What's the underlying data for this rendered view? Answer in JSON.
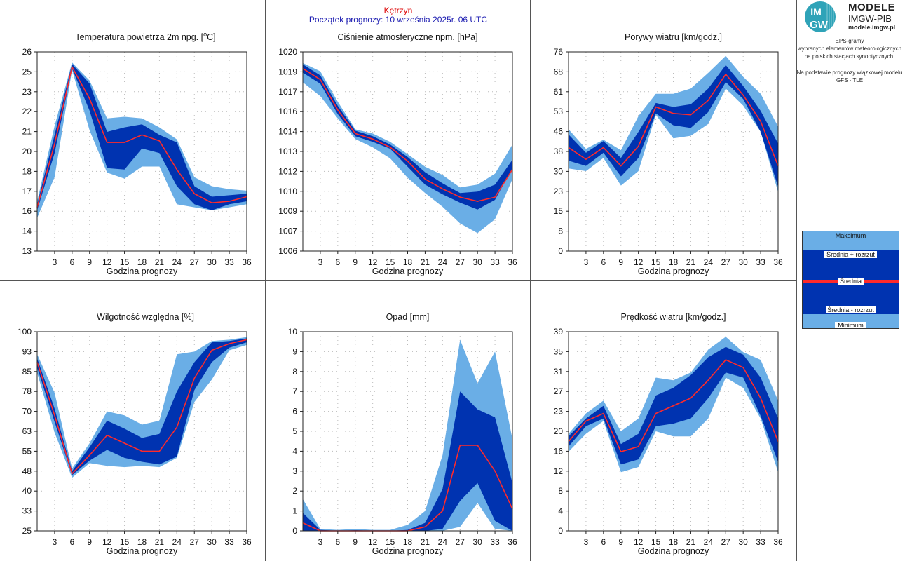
{
  "header": {
    "station": "Kętrzyn",
    "forecast_start": "Początek prognozy: 10 września 2025r. 06 UTC"
  },
  "brand": {
    "logo_text_top": "IM",
    "logo_text_bottom": "GW",
    "name": "MODELE",
    "org": "IMGW-PIB",
    "url": "modele.imgw.pl"
  },
  "side_text": {
    "line1": "EPS-gramy",
    "line2": "wybranych elementów meteorologicznych",
    "line3": "na polskich stacjach  synoptycznych.",
    "line4": "Na podstawie prognozy wiązkowej modelu",
    "line5": "GFS - TLE"
  },
  "legend": {
    "max": "Maksimum",
    "mean_plus": "Średnia + rozrzut",
    "mean": "Średnia",
    "mean_minus": "Średnia - rozrzut",
    "min": "Minimum"
  },
  "colors": {
    "outer_band": "#6aaee6",
    "inner_band": "#0033b0",
    "mean_line": "#ff2a2a",
    "grid": "#bbbbbb",
    "header_station": "#dd0000",
    "header_date": "#1a1ab0"
  },
  "chart_data": [
    {
      "type": "area",
      "title": "Temperatura powietrza 2m npg. [°C]",
      "title_main": "Temperatura powietrza 2m npg. [",
      "title_unit": "C]",
      "xlabel": "Godzina prognozy",
      "x": [
        0,
        3,
        6,
        9,
        12,
        15,
        18,
        21,
        24,
        27,
        30,
        33,
        36
      ],
      "xticks": [
        "3",
        "6",
        "9",
        "12",
        "15",
        "18",
        "21",
        "24",
        "27",
        "30",
        "33",
        "36"
      ],
      "yticks": [
        "13",
        "14",
        "16",
        "17",
        "18",
        "20",
        "21",
        "22",
        "23",
        "25",
        "26"
      ],
      "ylim": [
        12.9,
        26.1
      ],
      "min": [
        15.1,
        17.8,
        24.9,
        20.9,
        18.1,
        17.7,
        18.5,
        18.5,
        16.0,
        15.8,
        15.6,
        15.8,
        16.0
      ],
      "mean_minus": [
        15.6,
        19.4,
        25.0,
        22.2,
        18.4,
        18.3,
        19.7,
        19.4,
        17.2,
        16.0,
        15.6,
        16.0,
        16.2
      ],
      "mean": [
        15.8,
        20.0,
        25.1,
        23.0,
        20.1,
        20.1,
        20.6,
        20.2,
        18.3,
        16.7,
        16.1,
        16.2,
        16.5
      ],
      "mean_plus": [
        16.0,
        20.6,
        25.3,
        24.0,
        20.8,
        21.1,
        21.3,
        20.6,
        20.1,
        17.2,
        16.5,
        16.6,
        16.7
      ],
      "max": [
        16.2,
        21.2,
        25.4,
        24.2,
        21.7,
        21.8,
        21.7,
        21.1,
        20.3,
        17.8,
        17.2,
        17.0,
        16.9
      ]
    },
    {
      "type": "area",
      "title": "Ciśnienie atmosferyczne npm. [hPa]",
      "xlabel": "Godzina prognozy",
      "x": [
        0,
        3,
        6,
        9,
        12,
        15,
        18,
        21,
        24,
        27,
        30,
        33,
        36
      ],
      "xticks": [
        "3",
        "6",
        "9",
        "12",
        "15",
        "18",
        "21",
        "24",
        "27",
        "30",
        "33",
        "36"
      ],
      "yticks": [
        "1006",
        "1007",
        "1009",
        "1010",
        "1012",
        "1013",
        "1014",
        "1016",
        "1017",
        "1019",
        "1020"
      ],
      "ylim": [
        1005.8,
        1020.2
      ],
      "min": [
        1018.0,
        1017.0,
        1015.4,
        1013.9,
        1013.3,
        1012.5,
        1011.1,
        1010.0,
        1009.0,
        1007.8,
        1007.1,
        1008.1,
        1011.0
      ],
      "mean_minus": [
        1018.7,
        1017.9,
        1015.7,
        1014.1,
        1013.7,
        1013.2,
        1011.9,
        1010.6,
        1009.9,
        1009.3,
        1008.8,
        1009.5,
        1011.8
      ],
      "mean": [
        1019.0,
        1018.2,
        1016.0,
        1014.3,
        1013.9,
        1013.3,
        1012.3,
        1011.0,
        1010.3,
        1009.7,
        1009.4,
        1009.7,
        1011.7
      ],
      "mean_plus": [
        1019.3,
        1018.5,
        1016.3,
        1014.5,
        1014.1,
        1013.5,
        1012.6,
        1011.5,
        1010.7,
        1010.0,
        1010.1,
        1010.6,
        1012.4
      ],
      "max": [
        1019.4,
        1018.8,
        1016.6,
        1014.6,
        1014.3,
        1013.7,
        1012.8,
        1011.9,
        1011.3,
        1010.4,
        1010.6,
        1011.4,
        1013.5
      ]
    },
    {
      "type": "area",
      "title": "Porywy wiatru [km/godz.]",
      "xlabel": "Godzina prognozy",
      "x": [
        0,
        3,
        6,
        9,
        12,
        15,
        18,
        21,
        24,
        27,
        30,
        33,
        36
      ],
      "xticks": [
        "3",
        "6",
        "9",
        "12",
        "15",
        "18",
        "21",
        "24",
        "27",
        "30",
        "33",
        "36"
      ],
      "yticks": [
        "0",
        "8",
        "15",
        "23",
        "30",
        "38",
        "46",
        "53",
        "61",
        "68",
        "76"
      ],
      "ylim": [
        0,
        76
      ],
      "min": [
        31.5,
        30.5,
        35.5,
        25.0,
        30.5,
        52.0,
        43.0,
        44.0,
        48.5,
        62.0,
        55.5,
        45.5,
        22.5
      ],
      "mean_minus": [
        34.5,
        32.5,
        37.5,
        28.5,
        35.5,
        52.5,
        48.0,
        47.0,
        53.0,
        64.5,
        58.0,
        45.5,
        24.5
      ],
      "mean": [
        39.5,
        35.0,
        39.5,
        32.5,
        40.0,
        55.0,
        52.5,
        52.0,
        57.5,
        67.5,
        59.5,
        49.5,
        32.5
      ],
      "mean_plus": [
        44.5,
        37.5,
        42.0,
        35.5,
        45.5,
        56.5,
        55.0,
        56.0,
        62.0,
        71.0,
        63.0,
        53.5,
        41.0
      ],
      "max": [
        46.5,
        39.0,
        42.5,
        38.5,
        51.5,
        60.0,
        60.0,
        62.0,
        68.0,
        74.5,
        66.5,
        60.0,
        47.5
      ]
    },
    {
      "type": "area",
      "title": "Wilgotność względna [%]",
      "xlabel": "Godzina prognozy",
      "x": [
        0,
        3,
        6,
        9,
        12,
        15,
        18,
        21,
        24,
        27,
        30,
        33,
        36
      ],
      "xticks": [
        "3",
        "6",
        "9",
        "12",
        "15",
        "18",
        "21",
        "24",
        "27",
        "30",
        "33",
        "36"
      ],
      "yticks": [
        "25",
        "33",
        "40",
        "48",
        "55",
        "63",
        "70",
        "78",
        "85",
        "93",
        "100"
      ],
      "ylim": [
        25,
        100
      ],
      "min": [
        84.5,
        62.0,
        45.0,
        50.5,
        49.5,
        49.0,
        49.5,
        49.0,
        52.5,
        73.5,
        82.0,
        93.0,
        95.0
      ],
      "mean_minus": [
        86.5,
        66.0,
        46.0,
        51.5,
        55.5,
        52.5,
        51.0,
        50.0,
        53.0,
        78.0,
        88.5,
        94.0,
        96.0
      ],
      "mean": [
        88.5,
        68.5,
        46.5,
        53.5,
        61.0,
        58.0,
        55.0,
        55.0,
        64.0,
        82.5,
        93.0,
        95.5,
        97.0
      ],
      "mean_plus": [
        90.0,
        71.0,
        47.5,
        56.5,
        66.5,
        63.5,
        60.0,
        61.5,
        77.5,
        88.5,
        96.0,
        96.5,
        97.5
      ],
      "max": [
        91.5,
        77.0,
        48.5,
        58.0,
        70.0,
        68.5,
        65.0,
        66.5,
        91.5,
        92.5,
        96.5,
        97.0,
        98.0
      ]
    },
    {
      "type": "area",
      "title": "Opad [mm]",
      "xlabel": "Godzina prognozy",
      "x": [
        0,
        3,
        6,
        9,
        12,
        15,
        18,
        21,
        24,
        27,
        30,
        33,
        36
      ],
      "xticks": [
        "3",
        "6",
        "9",
        "12",
        "15",
        "18",
        "21",
        "24",
        "27",
        "30",
        "33",
        "36"
      ],
      "yticks": [
        "0",
        "1",
        "2",
        "3",
        "4",
        "5",
        "6",
        "7",
        "8",
        "9",
        "10"
      ],
      "ylim": [
        0,
        10
      ],
      "min": [
        0.0,
        0.0,
        0.0,
        0.0,
        0.0,
        0.0,
        0.0,
        0.0,
        0.0,
        0.2,
        1.4,
        0.1,
        0.0
      ],
      "mean_minus": [
        0.0,
        0.0,
        0.0,
        0.0,
        0.0,
        0.0,
        0.0,
        0.0,
        0.1,
        1.5,
        2.4,
        0.5,
        0.0
      ],
      "mean": [
        0.4,
        0.0,
        0.0,
        0.0,
        0.0,
        0.0,
        0.0,
        0.2,
        1.0,
        4.3,
        4.3,
        3.0,
        1.1
      ],
      "mean_plus": [
        0.9,
        0.05,
        0.0,
        0.03,
        0.0,
        0.0,
        0.05,
        0.4,
        2.1,
        7.0,
        6.1,
        5.7,
        2.4
      ],
      "max": [
        1.6,
        0.1,
        0.05,
        0.1,
        0.05,
        0.05,
        0.3,
        1.0,
        3.8,
        9.6,
        7.4,
        9.0,
        4.6
      ]
    },
    {
      "type": "area",
      "title": "Prędkość wiatru [km/godz.]",
      "xlabel": "Godzina prognozy",
      "x": [
        0,
        3,
        6,
        9,
        12,
        15,
        18,
        21,
        24,
        27,
        30,
        33,
        36
      ],
      "xticks": [
        "3",
        "6",
        "9",
        "12",
        "15",
        "18",
        "21",
        "24",
        "27",
        "30",
        "33",
        "36"
      ],
      "yticks": [
        "0",
        "4",
        "8",
        "12",
        "16",
        "20",
        "23",
        "27",
        "31",
        "35",
        "39"
      ],
      "ylim": [
        0,
        39
      ],
      "min": [
        15.5,
        19.0,
        21.5,
        11.5,
        12.5,
        19.5,
        18.5,
        18.5,
        22.0,
        30.0,
        28.0,
        22.0,
        11.5
      ],
      "mean_minus": [
        16.5,
        20.5,
        22.0,
        13.0,
        14.0,
        20.5,
        21.0,
        22.0,
        26.0,
        31.0,
        30.0,
        22.5,
        13.5
      ],
      "mean": [
        17.5,
        21.5,
        23.0,
        15.5,
        16.5,
        23.0,
        24.5,
        26.0,
        29.5,
        33.5,
        32.0,
        26.0,
        17.5
      ],
      "mean_plus": [
        18.5,
        22.0,
        24.5,
        17.0,
        19.0,
        26.5,
        28.0,
        30.5,
        34.0,
        36.0,
        34.5,
        30.0,
        22.0
      ],
      "max": [
        19.0,
        23.0,
        25.5,
        19.5,
        22.0,
        30.0,
        29.5,
        31.0,
        35.5,
        38.0,
        35.0,
        33.5,
        25.5
      ]
    }
  ]
}
